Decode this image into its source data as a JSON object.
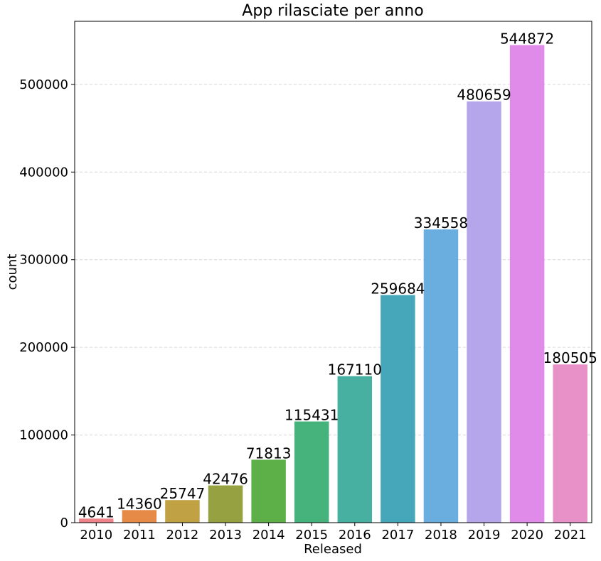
{
  "chart_data": {
    "type": "bar",
    "title": "App rilasciate per anno",
    "xlabel": "Released",
    "ylabel": "count",
    "categories": [
      "2010",
      "2011",
      "2012",
      "2013",
      "2014",
      "2015",
      "2016",
      "2017",
      "2018",
      "2019",
      "2020",
      "2021"
    ],
    "values": [
      4641,
      14360,
      25747,
      42476,
      71813,
      115431,
      167110,
      259684,
      334558,
      480659,
      544872,
      180505
    ],
    "data_labels": [
      "4641",
      "14360",
      "25747",
      "42476",
      "71813",
      "115431",
      "167110",
      "259684",
      "334558",
      "480659",
      "544872",
      "180505"
    ],
    "colors": [
      "#f0828a",
      "#e68a48",
      "#c0a244",
      "#96a241",
      "#5db048",
      "#46b27c",
      "#47b0a1",
      "#46a6ba",
      "#6aaee0",
      "#b5a6ec",
      "#e08aea",
      "#e890c8"
    ],
    "ylim": [
      0,
      572000
    ],
    "yticks": [
      0,
      100000,
      200000,
      300000,
      400000,
      500000
    ],
    "ytick_labels": [
      "0",
      "100000",
      "200000",
      "300000",
      "400000",
      "500000"
    ],
    "grid": {
      "axis": "y",
      "style": "dashed",
      "color": "#d6d6d6"
    }
  }
}
